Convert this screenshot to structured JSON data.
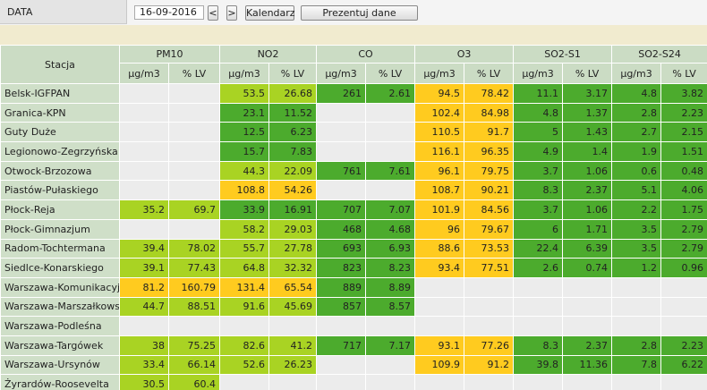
{
  "header": {
    "label": "DATA",
    "date": "16-09-2016",
    "buttons": [
      "<",
      ">",
      "Kalendarz",
      "Prezentuj dane"
    ]
  },
  "table": {
    "station_header": "Stacja",
    "groups": [
      "PM10",
      "NO2",
      "CO",
      "O3",
      "SO2-S1",
      "SO2-S24"
    ],
    "subheaders": [
      "µg/m3",
      "% LV",
      "µg/m3",
      "% LV",
      "µg/m3",
      "% LV",
      "µg/m3",
      "% LV",
      "µg/m3",
      "% LV",
      "µg/m3",
      "% LV"
    ],
    "rows": [
      {
        "station": "Belsk-IGFPAN",
        "values": [
          null,
          null,
          53.5,
          26.68,
          261,
          2.61,
          94.5,
          78.42,
          11.1,
          3.17,
          4.8,
          3.82
        ],
        "colors": [
          null,
          null,
          "#a9d323",
          "#a9d323",
          "#4cab2d",
          "#4cab2d",
          "#ffcb1f",
          "#ffcb1f",
          "#4cab2d",
          "#4cab2d",
          "#4cab2d",
          "#4cab2d"
        ]
      },
      {
        "station": "Granica-KPN",
        "values": [
          null,
          null,
          23.1,
          11.52,
          null,
          null,
          102.4,
          84.98,
          4.8,
          1.37,
          2.8,
          2.23
        ],
        "colors": [
          null,
          null,
          "#4cab2d",
          "#4cab2d",
          null,
          null,
          "#ffcb1f",
          "#ffcb1f",
          "#4cab2d",
          "#4cab2d",
          "#4cab2d",
          "#4cab2d"
        ]
      },
      {
        "station": "Guty Duże",
        "values": [
          null,
          null,
          12.5,
          6.23,
          null,
          null,
          110.5,
          91.7,
          5,
          1.43,
          2.7,
          2.15
        ],
        "colors": [
          null,
          null,
          "#4cab2d",
          "#4cab2d",
          null,
          null,
          "#ffcb1f",
          "#ffcb1f",
          "#4cab2d",
          "#4cab2d",
          "#4cab2d",
          "#4cab2d"
        ]
      },
      {
        "station": "Legionowo-Zegrzyńska",
        "values": [
          null,
          null,
          15.7,
          7.83,
          null,
          null,
          116.1,
          96.35,
          4.9,
          1.4,
          1.9,
          1.51
        ],
        "colors": [
          null,
          null,
          "#4cab2d",
          "#4cab2d",
          null,
          null,
          "#ffcb1f",
          "#ffcb1f",
          "#4cab2d",
          "#4cab2d",
          "#4cab2d",
          "#4cab2d"
        ]
      },
      {
        "station": "Otwock-Brzozowa",
        "values": [
          null,
          null,
          44.3,
          22.09,
          761,
          7.61,
          96.1,
          79.75,
          3.7,
          1.06,
          0.6,
          0.48
        ],
        "colors": [
          null,
          null,
          "#a9d323",
          "#a9d323",
          "#4cab2d",
          "#4cab2d",
          "#ffcb1f",
          "#ffcb1f",
          "#4cab2d",
          "#4cab2d",
          "#4cab2d",
          "#4cab2d"
        ]
      },
      {
        "station": "Piastów-Pułaskiego",
        "values": [
          null,
          null,
          108.8,
          54.26,
          null,
          null,
          108.7,
          90.21,
          8.3,
          2.37,
          5.1,
          4.06
        ],
        "colors": [
          null,
          null,
          "#ffcb1f",
          "#ffcb1f",
          null,
          null,
          "#ffcb1f",
          "#ffcb1f",
          "#4cab2d",
          "#4cab2d",
          "#4cab2d",
          "#4cab2d"
        ]
      },
      {
        "station": "Płock-Reja",
        "values": [
          35.2,
          69.7,
          33.9,
          16.91,
          707,
          7.07,
          101.9,
          84.56,
          3.7,
          1.06,
          2.2,
          1.75
        ],
        "colors": [
          "#a9d323",
          "#a9d323",
          "#4cab2d",
          "#4cab2d",
          "#4cab2d",
          "#4cab2d",
          "#ffcb1f",
          "#ffcb1f",
          "#4cab2d",
          "#4cab2d",
          "#4cab2d",
          "#4cab2d"
        ]
      },
      {
        "station": "Płock-Gimnazjum",
        "values": [
          null,
          null,
          58.2,
          29.03,
          468,
          4.68,
          96,
          79.67,
          6,
          1.71,
          3.5,
          2.79
        ],
        "colors": [
          null,
          null,
          "#a9d323",
          "#a9d323",
          "#4cab2d",
          "#4cab2d",
          "#ffcb1f",
          "#ffcb1f",
          "#4cab2d",
          "#4cab2d",
          "#4cab2d",
          "#4cab2d"
        ]
      },
      {
        "station": "Radom-Tochtermana",
        "values": [
          39.4,
          78.02,
          55.7,
          27.78,
          693,
          6.93,
          88.6,
          73.53,
          22.4,
          6.39,
          3.5,
          2.79
        ],
        "colors": [
          "#a9d323",
          "#a9d323",
          "#a9d323",
          "#a9d323",
          "#4cab2d",
          "#4cab2d",
          "#ffcb1f",
          "#ffcb1f",
          "#4cab2d",
          "#4cab2d",
          "#4cab2d",
          "#4cab2d"
        ]
      },
      {
        "station": "Siedlce-Konarskiego",
        "values": [
          39.1,
          77.43,
          64.8,
          32.32,
          823,
          8.23,
          93.4,
          77.51,
          2.6,
          0.74,
          1.2,
          0.96
        ],
        "colors": [
          "#a9d323",
          "#a9d323",
          "#a9d323",
          "#a9d323",
          "#4cab2d",
          "#4cab2d",
          "#ffcb1f",
          "#ffcb1f",
          "#4cab2d",
          "#4cab2d",
          "#4cab2d",
          "#4cab2d"
        ]
      },
      {
        "station": "Warszawa-Komunikacyjna",
        "values": [
          81.2,
          160.79,
          131.4,
          65.54,
          889,
          8.89,
          null,
          null,
          null,
          null,
          null,
          null
        ],
        "colors": [
          "#ffcb1f",
          "#ffcb1f",
          "#ffcb1f",
          "#ffcb1f",
          "#4cab2d",
          "#4cab2d",
          null,
          null,
          null,
          null,
          null,
          null
        ]
      },
      {
        "station": "Warszawa-Marszałkowska",
        "values": [
          44.7,
          88.51,
          91.6,
          45.69,
          857,
          8.57,
          null,
          null,
          null,
          null,
          null,
          null
        ],
        "colors": [
          "#a9d323",
          "#a9d323",
          "#a9d323",
          "#a9d323",
          "#4cab2d",
          "#4cab2d",
          null,
          null,
          null,
          null,
          null,
          null
        ]
      },
      {
        "station": "Warszawa-Podleśna",
        "values": [
          null,
          null,
          null,
          null,
          null,
          null,
          null,
          null,
          null,
          null,
          null,
          null
        ],
        "colors": [
          null,
          null,
          null,
          null,
          null,
          null,
          null,
          null,
          null,
          null,
          null,
          null
        ]
      },
      {
        "station": "Warszawa-Targówek",
        "values": [
          38,
          75.25,
          82.6,
          41.2,
          717,
          7.17,
          93.1,
          77.26,
          8.3,
          2.37,
          2.8,
          2.23
        ],
        "colors": [
          "#a9d323",
          "#a9d323",
          "#a9d323",
          "#a9d323",
          "#4cab2d",
          "#4cab2d",
          "#ffcb1f",
          "#ffcb1f",
          "#4cab2d",
          "#4cab2d",
          "#4cab2d",
          "#4cab2d"
        ]
      },
      {
        "station": "Warszawa-Ursynów",
        "values": [
          33.4,
          66.14,
          52.6,
          26.23,
          null,
          null,
          109.9,
          91.2,
          39.8,
          11.36,
          7.8,
          6.22
        ],
        "colors": [
          "#a9d323",
          "#a9d323",
          "#a9d323",
          "#a9d323",
          null,
          null,
          "#ffcb1f",
          "#ffcb1f",
          "#4cab2d",
          "#4cab2d",
          "#4cab2d",
          "#4cab2d"
        ]
      },
      {
        "station": "Żyrardów-Roosevelta",
        "values": [
          30.5,
          60.4,
          null,
          null,
          null,
          null,
          null,
          null,
          null,
          null,
          null,
          null
        ],
        "colors": [
          "#a9d323",
          "#a9d323",
          null,
          null,
          null,
          null,
          null,
          null,
          null,
          null,
          null,
          null
        ]
      }
    ]
  }
}
